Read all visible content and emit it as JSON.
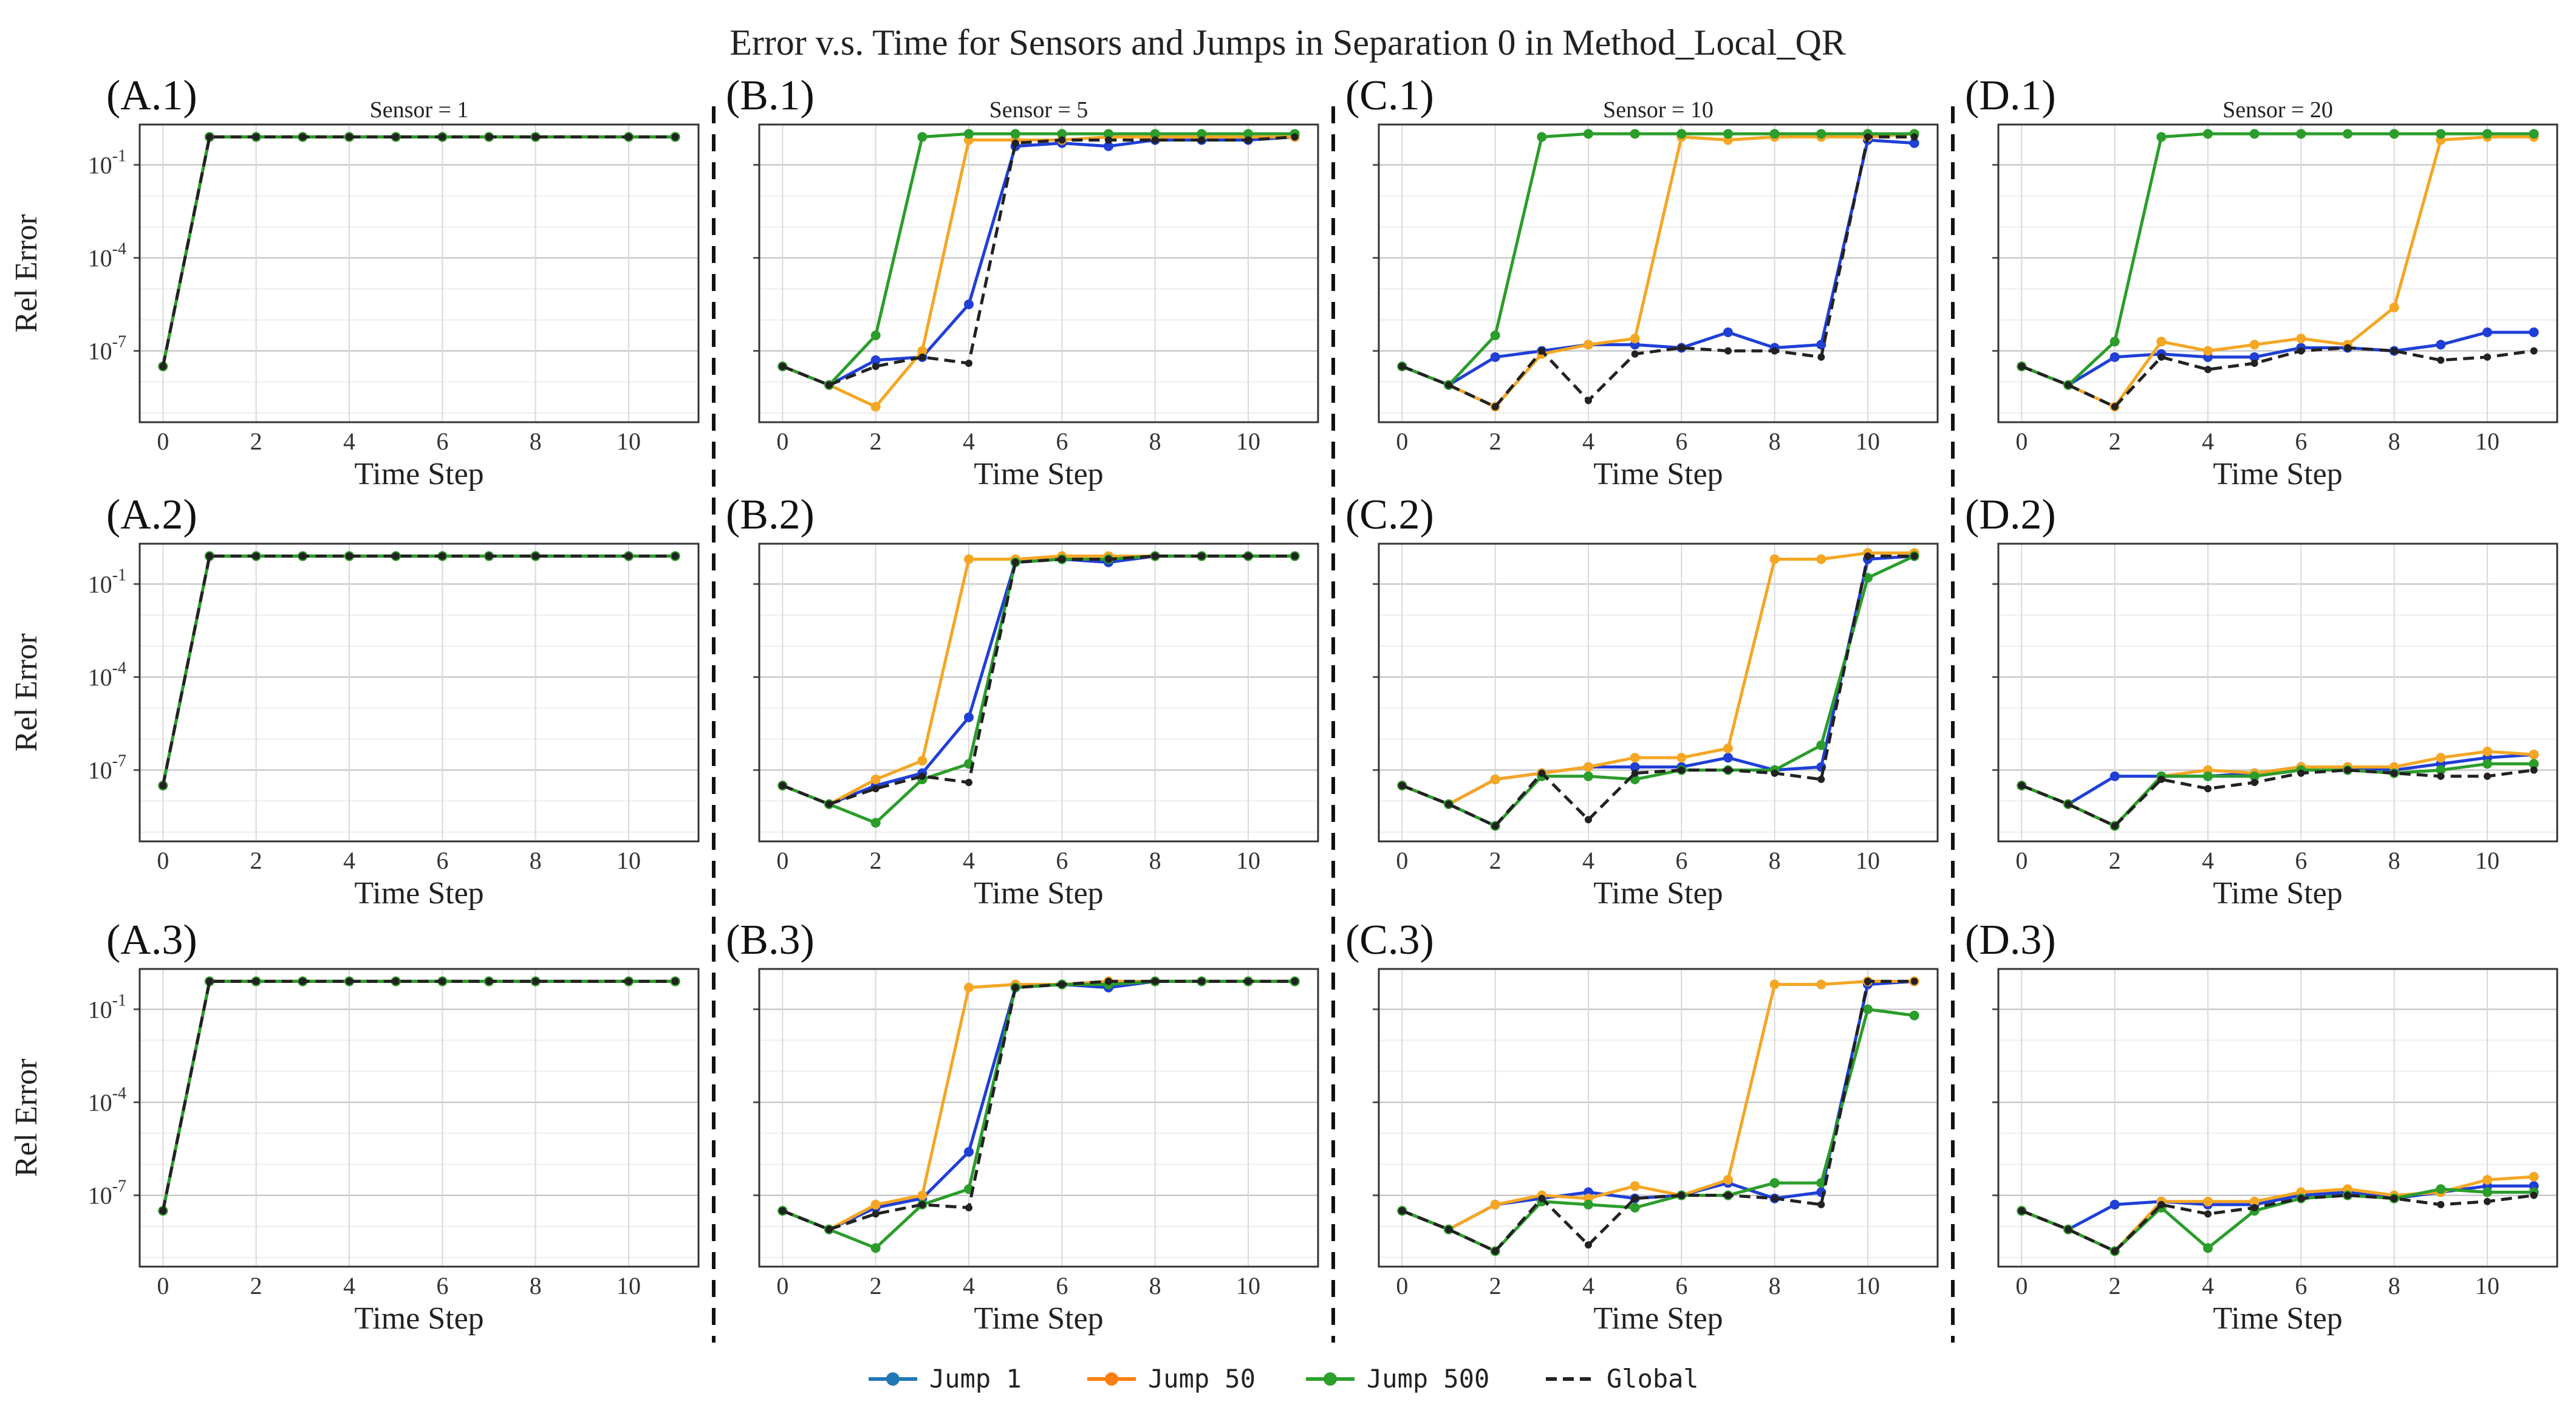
{
  "figure_title": "Error v.s. Time for Sensors and Jumps in Separation 0 in Method_Local_QR",
  "colors": {
    "jump1": "#1f3fd6",
    "jump50": "#f5a623",
    "jump500": "#2a9d2a",
    "global": "#222222",
    "legend_jump1": "#1f77b4",
    "legend_jump50": "#ff7f0e",
    "legend_jump500": "#2ca02c",
    "separator": "#111111"
  },
  "axis_labels": {
    "x": "Time Step",
    "y": "Rel Error"
  },
  "x_ticks": [
    "0",
    "2",
    "4",
    "6",
    "8",
    "10"
  ],
  "y_ticks": [
    {
      "base": "10",
      "exp": "-1",
      "value": -1
    },
    {
      "base": "10",
      "exp": "-4",
      "value": -4
    },
    {
      "base": "10",
      "exp": "-7",
      "value": -7
    }
  ],
  "legend": [
    {
      "label": "Jump 1",
      "series": "jump1"
    },
    {
      "label": "Jump 50",
      "series": "jump50"
    },
    {
      "label": "Jump 500",
      "series": "jump500"
    },
    {
      "label": "Global",
      "series": "global"
    }
  ],
  "chart_data": [
    {
      "id": "A1",
      "label": "(A.1)",
      "sensor_title": "Sensor = 1",
      "type": "line",
      "y_scale": "log10",
      "ylim": [
        -9.3,
        0.3
      ],
      "xlim": [
        -0.5,
        11.5
      ],
      "x": [
        0,
        1,
        2,
        3,
        4,
        5,
        6,
        7,
        8,
        10,
        11
      ],
      "series": {
        "jump1": [
          -7.5,
          -0.1,
          -0.1,
          -0.1,
          -0.1,
          -0.1,
          -0.1,
          -0.1,
          -0.1,
          -0.1,
          -0.1
        ],
        "jump50": [
          -7.5,
          -0.1,
          -0.1,
          -0.1,
          -0.1,
          -0.1,
          -0.1,
          -0.1,
          -0.1,
          -0.1,
          -0.1
        ],
        "jump500": [
          -7.5,
          -0.1,
          -0.1,
          -0.1,
          -0.1,
          -0.1,
          -0.1,
          -0.1,
          -0.1,
          -0.1,
          -0.1
        ],
        "global": [
          -7.5,
          -0.1,
          -0.1,
          -0.1,
          -0.1,
          -0.1,
          -0.1,
          -0.1,
          -0.1,
          -0.1,
          -0.1
        ]
      }
    },
    {
      "id": "B1",
      "label": "(B.1)",
      "sensor_title": "Sensor = 5",
      "type": "line",
      "y_scale": "log10",
      "ylim": [
        -9.3,
        0.3
      ],
      "xlim": [
        -0.5,
        11.5
      ],
      "x": [
        0,
        1,
        2,
        3,
        4,
        5,
        6,
        7,
        8,
        9,
        10,
        11
      ],
      "series": {
        "jump1": [
          -7.5,
          -8.1,
          -7.3,
          -7.2,
          -5.5,
          -0.4,
          -0.3,
          -0.4,
          -0.2,
          -0.2,
          -0.2,
          -0.1
        ],
        "jump50": [
          -7.5,
          -8.1,
          -8.8,
          -7.0,
          -0.2,
          -0.2,
          -0.2,
          -0.1,
          -0.1,
          -0.1,
          -0.1,
          -0.1
        ],
        "jump500": [
          -7.5,
          -8.1,
          -6.5,
          -0.1,
          0.0,
          0.0,
          0.0,
          0.0,
          0.0,
          0.0,
          0.0,
          0.0
        ],
        "global": [
          -7.5,
          -8.1,
          -7.5,
          -7.2,
          -7.4,
          -0.3,
          -0.2,
          -0.2,
          -0.2,
          -0.2,
          -0.2,
          -0.1
        ]
      }
    },
    {
      "id": "C1",
      "label": "(C.1)",
      "sensor_title": "Sensor = 10",
      "type": "line",
      "y_scale": "log10",
      "ylim": [
        -9.3,
        0.3
      ],
      "xlim": [
        -0.5,
        11.5
      ],
      "x": [
        0,
        1,
        2,
        3,
        4,
        5,
        6,
        7,
        8,
        9,
        10,
        11
      ],
      "series": {
        "jump1": [
          -7.5,
          -8.1,
          -7.2,
          -7.0,
          -6.8,
          -6.8,
          -6.9,
          -6.4,
          -6.9,
          -6.8,
          -0.2,
          -0.3
        ],
        "jump50": [
          -7.5,
          -8.1,
          -8.8,
          -7.1,
          -6.8,
          -6.6,
          -0.1,
          -0.2,
          -0.1,
          -0.1,
          -0.1,
          0.0
        ],
        "jump500": [
          -7.5,
          -8.1,
          -6.5,
          -0.1,
          0.0,
          0.0,
          0.0,
          0.0,
          0.0,
          0.0,
          0.0,
          0.0
        ],
        "global": [
          -7.5,
          -8.1,
          -8.8,
          -7.0,
          -8.6,
          -7.1,
          -6.9,
          -7.0,
          -7.0,
          -7.2,
          -0.1,
          -0.1
        ]
      }
    },
    {
      "id": "D1",
      "label": "(D.1)",
      "sensor_title": "Sensor = 20",
      "type": "line",
      "y_scale": "log10",
      "ylim": [
        -9.3,
        0.3
      ],
      "xlim": [
        -0.5,
        11.5
      ],
      "x": [
        0,
        1,
        2,
        3,
        4,
        5,
        6,
        7,
        8,
        9,
        10,
        11
      ],
      "series": {
        "jump1": [
          -7.5,
          -8.1,
          -7.2,
          -7.1,
          -7.2,
          -7.2,
          -6.9,
          -6.9,
          -7.0,
          -6.8,
          -6.4,
          -6.4
        ],
        "jump50": [
          -7.5,
          -8.1,
          -8.8,
          -6.7,
          -7.0,
          -6.8,
          -6.6,
          -6.8,
          -5.6,
          -0.2,
          -0.1,
          -0.1
        ],
        "jump500": [
          -7.5,
          -8.1,
          -6.7,
          -0.1,
          0.0,
          0.0,
          0.0,
          0.0,
          0.0,
          0.0,
          0.0,
          0.0
        ],
        "global": [
          -7.5,
          -8.1,
          -8.8,
          -7.2,
          -7.6,
          -7.4,
          -7.0,
          -6.9,
          -7.0,
          -7.3,
          -7.2,
          -7.0
        ]
      }
    },
    {
      "id": "A2",
      "label": "(A.2)",
      "sensor_title": "",
      "type": "line",
      "y_scale": "log10",
      "ylim": [
        -9.3,
        0.3
      ],
      "xlim": [
        -0.5,
        11.5
      ],
      "x": [
        0,
        1,
        2,
        3,
        4,
        5,
        6,
        7,
        8,
        10,
        11
      ],
      "series": {
        "jump1": [
          -7.5,
          -0.1,
          -0.1,
          -0.1,
          -0.1,
          -0.1,
          -0.1,
          -0.1,
          -0.1,
          -0.1,
          -0.1
        ],
        "jump50": [
          -7.5,
          -0.1,
          -0.1,
          -0.1,
          -0.1,
          -0.1,
          -0.1,
          -0.1,
          -0.1,
          -0.1,
          -0.1
        ],
        "jump500": [
          -7.5,
          -0.1,
          -0.1,
          -0.1,
          -0.1,
          -0.1,
          -0.1,
          -0.1,
          -0.1,
          -0.1,
          -0.1
        ],
        "global": [
          -7.5,
          -0.1,
          -0.1,
          -0.1,
          -0.1,
          -0.1,
          -0.1,
          -0.1,
          -0.1,
          -0.1,
          -0.1
        ]
      }
    },
    {
      "id": "B2",
      "label": "(B.2)",
      "sensor_title": "",
      "type": "line",
      "y_scale": "log10",
      "ylim": [
        -9.3,
        0.3
      ],
      "xlim": [
        -0.5,
        11.5
      ],
      "x": [
        0,
        1,
        2,
        3,
        4,
        5,
        6,
        7,
        8,
        9,
        10,
        11
      ],
      "series": {
        "jump1": [
          -7.5,
          -8.1,
          -7.5,
          -7.1,
          -5.3,
          -0.3,
          -0.2,
          -0.3,
          -0.1,
          -0.1,
          -0.1,
          -0.1
        ],
        "jump50": [
          -7.5,
          -8.1,
          -7.3,
          -6.7,
          -0.2,
          -0.2,
          -0.1,
          -0.1,
          -0.1,
          -0.1,
          -0.1,
          -0.1
        ],
        "jump500": [
          -7.5,
          -8.1,
          -8.7,
          -7.3,
          -6.8,
          -0.3,
          -0.2,
          -0.2,
          -0.1,
          -0.1,
          -0.1,
          -0.1
        ],
        "global": [
          -7.5,
          -8.1,
          -7.6,
          -7.2,
          -7.4,
          -0.3,
          -0.2,
          -0.2,
          -0.1,
          -0.1,
          -0.1,
          -0.1
        ]
      }
    },
    {
      "id": "C2",
      "label": "(C.2)",
      "sensor_title": "",
      "type": "line",
      "y_scale": "log10",
      "ylim": [
        -9.3,
        0.3
      ],
      "xlim": [
        -0.5,
        11.5
      ],
      "x": [
        0,
        1,
        2,
        3,
        4,
        5,
        6,
        7,
        8,
        9,
        10,
        11
      ],
      "series": {
        "jump1": [
          -7.5,
          -8.1,
          -7.3,
          -7.1,
          -6.9,
          -6.9,
          -6.9,
          -6.6,
          -7.0,
          -6.9,
          -0.2,
          -0.1
        ],
        "jump50": [
          -7.5,
          -8.1,
          -7.3,
          -7.1,
          -6.9,
          -6.6,
          -6.6,
          -6.3,
          -0.2,
          -0.2,
          0.0,
          0.0
        ],
        "jump500": [
          -7.5,
          -8.1,
          -8.8,
          -7.2,
          -7.2,
          -7.3,
          -7.0,
          -7.0,
          -7.0,
          -6.2,
          -0.8,
          -0.1
        ],
        "global": [
          -7.5,
          -8.1,
          -8.8,
          -7.1,
          -8.6,
          -7.1,
          -7.0,
          -7.0,
          -7.1,
          -7.3,
          -0.1,
          -0.1
        ]
      }
    },
    {
      "id": "D2",
      "label": "(D.2)",
      "sensor_title": "",
      "type": "line",
      "y_scale": "log10",
      "ylim": [
        -9.3,
        0.3
      ],
      "xlim": [
        -0.5,
        11.5
      ],
      "x": [
        0,
        1,
        2,
        3,
        4,
        5,
        6,
        7,
        8,
        9,
        10,
        11
      ],
      "series": {
        "jump1": [
          -7.5,
          -8.1,
          -7.2,
          -7.2,
          -7.2,
          -7.1,
          -6.9,
          -6.9,
          -7.0,
          -6.8,
          -6.6,
          -6.5
        ],
        "jump50": [
          -7.5,
          -8.1,
          -8.8,
          -7.2,
          -7.0,
          -7.1,
          -6.9,
          -6.9,
          -6.9,
          -6.6,
          -6.4,
          -6.5
        ],
        "jump500": [
          -7.5,
          -8.1,
          -8.8,
          -7.2,
          -7.2,
          -7.2,
          -7.0,
          -7.0,
          -7.1,
          -7.0,
          -6.8,
          -6.8
        ],
        "global": [
          -7.5,
          -8.1,
          -8.8,
          -7.3,
          -7.6,
          -7.4,
          -7.1,
          -7.0,
          -7.1,
          -7.2,
          -7.2,
          -7.0
        ]
      }
    },
    {
      "id": "A3",
      "label": "(A.3)",
      "sensor_title": "",
      "type": "line",
      "y_scale": "log10",
      "ylim": [
        -9.3,
        0.3
      ],
      "xlim": [
        -0.5,
        11.5
      ],
      "x": [
        0,
        1,
        2,
        3,
        4,
        5,
        6,
        7,
        8,
        10,
        11
      ],
      "series": {
        "jump1": [
          -7.5,
          -0.1,
          -0.1,
          -0.1,
          -0.1,
          -0.1,
          -0.1,
          -0.1,
          -0.1,
          -0.1,
          -0.1
        ],
        "jump50": [
          -7.5,
          -0.1,
          -0.1,
          -0.1,
          -0.1,
          -0.1,
          -0.1,
          -0.1,
          -0.1,
          -0.1,
          -0.1
        ],
        "jump500": [
          -7.5,
          -0.1,
          -0.1,
          -0.1,
          -0.1,
          -0.1,
          -0.1,
          -0.1,
          -0.1,
          -0.1,
          -0.1
        ],
        "global": [
          -7.5,
          -0.1,
          -0.1,
          -0.1,
          -0.1,
          -0.1,
          -0.1,
          -0.1,
          -0.1,
          -0.1,
          -0.1
        ]
      }
    },
    {
      "id": "B3",
      "label": "(B.3)",
      "sensor_title": "",
      "type": "line",
      "y_scale": "log10",
      "ylim": [
        -9.3,
        0.3
      ],
      "xlim": [
        -0.5,
        11.5
      ],
      "x": [
        0,
        1,
        2,
        3,
        4,
        5,
        6,
        7,
        8,
        9,
        10,
        11
      ],
      "series": {
        "jump1": [
          -7.5,
          -8.1,
          -7.4,
          -7.1,
          -5.6,
          -0.3,
          -0.2,
          -0.3,
          -0.1,
          -0.1,
          -0.1,
          -0.1
        ],
        "jump50": [
          -7.5,
          -8.1,
          -7.3,
          -7.0,
          -0.3,
          -0.2,
          -0.2,
          -0.1,
          -0.1,
          -0.1,
          -0.1,
          -0.1
        ],
        "jump500": [
          -7.5,
          -8.1,
          -8.7,
          -7.3,
          -6.8,
          -0.3,
          -0.2,
          -0.2,
          -0.1,
          -0.1,
          -0.1,
          -0.1
        ],
        "global": [
          -7.5,
          -8.1,
          -7.6,
          -7.3,
          -7.4,
          -0.3,
          -0.2,
          -0.1,
          -0.1,
          -0.1,
          -0.1,
          -0.1
        ]
      }
    },
    {
      "id": "C3",
      "label": "(C.3)",
      "sensor_title": "",
      "type": "line",
      "y_scale": "log10",
      "ylim": [
        -9.3,
        0.3
      ],
      "xlim": [
        -0.5,
        11.5
      ],
      "x": [
        0,
        1,
        2,
        3,
        4,
        5,
        6,
        7,
        8,
        9,
        10,
        11
      ],
      "series": {
        "jump1": [
          -7.5,
          -8.1,
          -7.3,
          -7.1,
          -6.9,
          -7.1,
          -7.0,
          -6.6,
          -7.1,
          -6.9,
          -0.2,
          -0.1
        ],
        "jump50": [
          -7.5,
          -8.1,
          -7.3,
          -7.0,
          -7.1,
          -6.7,
          -7.0,
          -6.5,
          -0.2,
          -0.2,
          -0.1,
          -0.1
        ],
        "jump500": [
          -7.5,
          -8.1,
          -8.8,
          -7.2,
          -7.3,
          -7.4,
          -7.0,
          -7.0,
          -6.6,
          -6.6,
          -1.0,
          -1.2
        ],
        "global": [
          -7.5,
          -8.1,
          -8.8,
          -7.1,
          -8.6,
          -7.1,
          -7.0,
          -7.0,
          -7.1,
          -7.3,
          -0.1,
          -0.1
        ]
      }
    },
    {
      "id": "D3",
      "label": "(D.3)",
      "sensor_title": "",
      "type": "line",
      "y_scale": "log10",
      "ylim": [
        -9.3,
        0.3
      ],
      "xlim": [
        -0.5,
        11.5
      ],
      "x": [
        0,
        1,
        2,
        3,
        4,
        5,
        6,
        7,
        8,
        9,
        10,
        11
      ],
      "series": {
        "jump1": [
          -7.5,
          -8.1,
          -7.3,
          -7.2,
          -7.3,
          -7.3,
          -7.0,
          -6.9,
          -7.1,
          -6.9,
          -6.7,
          -6.7
        ],
        "jump50": [
          -7.5,
          -8.1,
          -8.8,
          -7.2,
          -7.2,
          -7.2,
          -6.9,
          -6.8,
          -7.0,
          -6.9,
          -6.5,
          -6.4
        ],
        "jump500": [
          -7.5,
          -8.1,
          -8.8,
          -7.4,
          -8.7,
          -7.5,
          -7.1,
          -7.0,
          -7.1,
          -6.8,
          -6.9,
          -6.9
        ],
        "global": [
          -7.5,
          -8.1,
          -8.8,
          -7.3,
          -7.6,
          -7.4,
          -7.1,
          -7.0,
          -7.1,
          -7.3,
          -7.2,
          -7.0
        ]
      }
    }
  ]
}
